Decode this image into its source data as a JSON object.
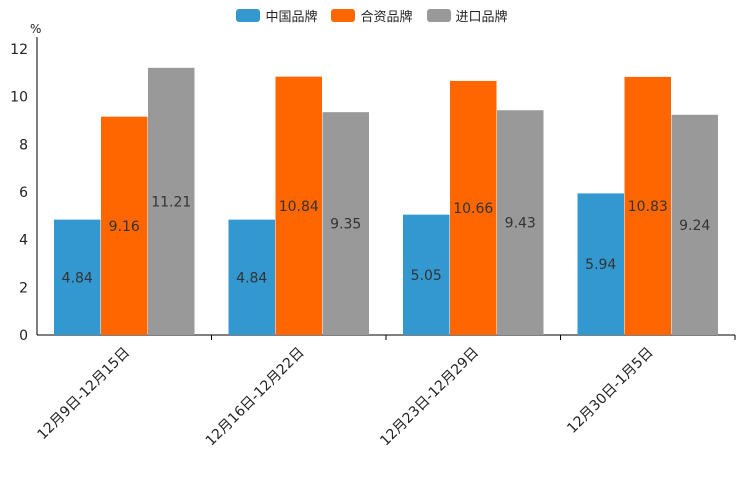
{
  "chart_data": {
    "type": "bar",
    "ylabel": "%",
    "ylim": [
      0,
      12
    ],
    "yticks": [
      "0",
      "2",
      "4",
      "6",
      "8",
      "10",
      "12"
    ],
    "categories": [
      "12月9日-12月15日",
      "12月16日-12月22日",
      "12月23日-12月29日",
      "12月30日-1月5日"
    ],
    "series": [
      {
        "name": "中国品牌",
        "color": "#3498d0",
        "values": [
          4.84,
          4.84,
          5.05,
          5.94
        ],
        "labels": [
          "4.84",
          "4.84",
          "5.05",
          "5.94"
        ]
      },
      {
        "name": "合资品牌",
        "color": "#ff6600",
        "values": [
          9.16,
          10.84,
          10.66,
          10.83
        ],
        "labels": [
          "9.16",
          "10.84",
          "10.66",
          "10.83"
        ]
      },
      {
        "name": "进口品牌",
        "color": "#999999",
        "values": [
          11.21,
          9.35,
          9.43,
          9.24
        ],
        "labels": [
          "11.21",
          "9.35",
          "9.43",
          "9.24"
        ]
      }
    ]
  }
}
